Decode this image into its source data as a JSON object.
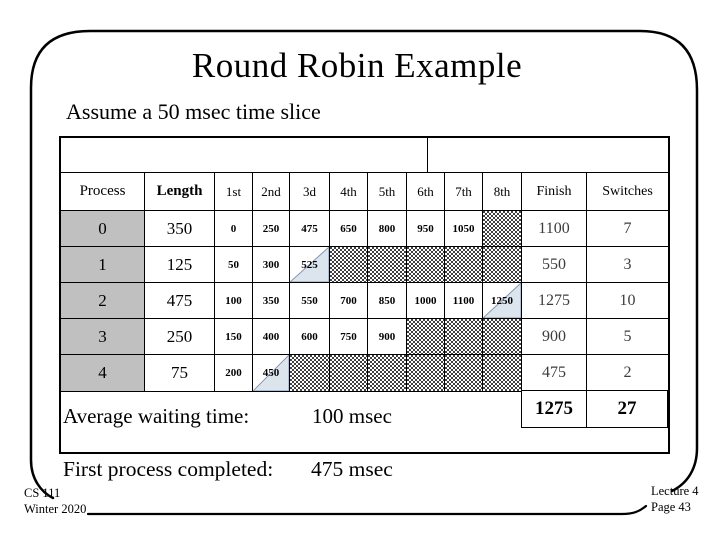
{
  "slide": {
    "title": "Round Robin Example",
    "subtitle": "Assume a 50 msec time slice",
    "avg_wait_label": "Average waiting time:",
    "avg_wait_value": "100 msec",
    "first_completed_label": "First process completed:",
    "first_completed_value": "475 msec",
    "footer_left_line1": "CS 111",
    "footer_left_line2": "Winter 2020",
    "footer_right_line1": "Lecture 4",
    "footer_right_line2": "Page 43"
  },
  "table": {
    "headers": [
      "Process",
      "Length",
      "1st",
      "2nd",
      "3d",
      "4th",
      "5th",
      "6th",
      "7th",
      "8th",
      "Finish",
      "Switches"
    ],
    "rows": [
      {
        "process": "0",
        "length": "350",
        "quanta": [
          "0",
          "250",
          "475",
          "650",
          "800",
          "950",
          "1050",
          ""
        ],
        "hatch": [
          7
        ],
        "triangle": -1,
        "finish": "1100",
        "switches": "7"
      },
      {
        "process": "1",
        "length": "125",
        "quanta": [
          "50",
          "300",
          "525",
          "",
          "",
          "",
          "",
          ""
        ],
        "hatch": [
          3,
          4,
          5,
          6,
          7
        ],
        "triangle": 2,
        "finish": "550",
        "switches": "3"
      },
      {
        "process": "2",
        "length": "475",
        "quanta": [
          "100",
          "350",
          "550",
          "700",
          "850",
          "1000",
          "1100",
          "1250"
        ],
        "hatch": [],
        "triangle": 7,
        "finish": "1275",
        "switches": "10"
      },
      {
        "process": "3",
        "length": "250",
        "quanta": [
          "150",
          "400",
          "600",
          "750",
          "900",
          "",
          "",
          ""
        ],
        "hatch": [
          5,
          6,
          7
        ],
        "triangle": -1,
        "finish": "900",
        "switches": "5"
      },
      {
        "process": "4",
        "length": "75",
        "quanta": [
          "200",
          "450",
          "",
          "",
          "",
          "",
          "",
          ""
        ],
        "hatch": [
          2,
          3,
          4,
          5,
          6,
          7
        ],
        "triangle": 1,
        "finish": "475",
        "switches": "2"
      }
    ],
    "totals": {
      "finish": "1275",
      "switches": "27"
    }
  },
  "colors": {
    "process_cell_gray": "#c0c0c0",
    "partial_marker_fill": "#dce4ee",
    "partial_marker_edge": "#8295b5",
    "line_color": "#000000"
  }
}
